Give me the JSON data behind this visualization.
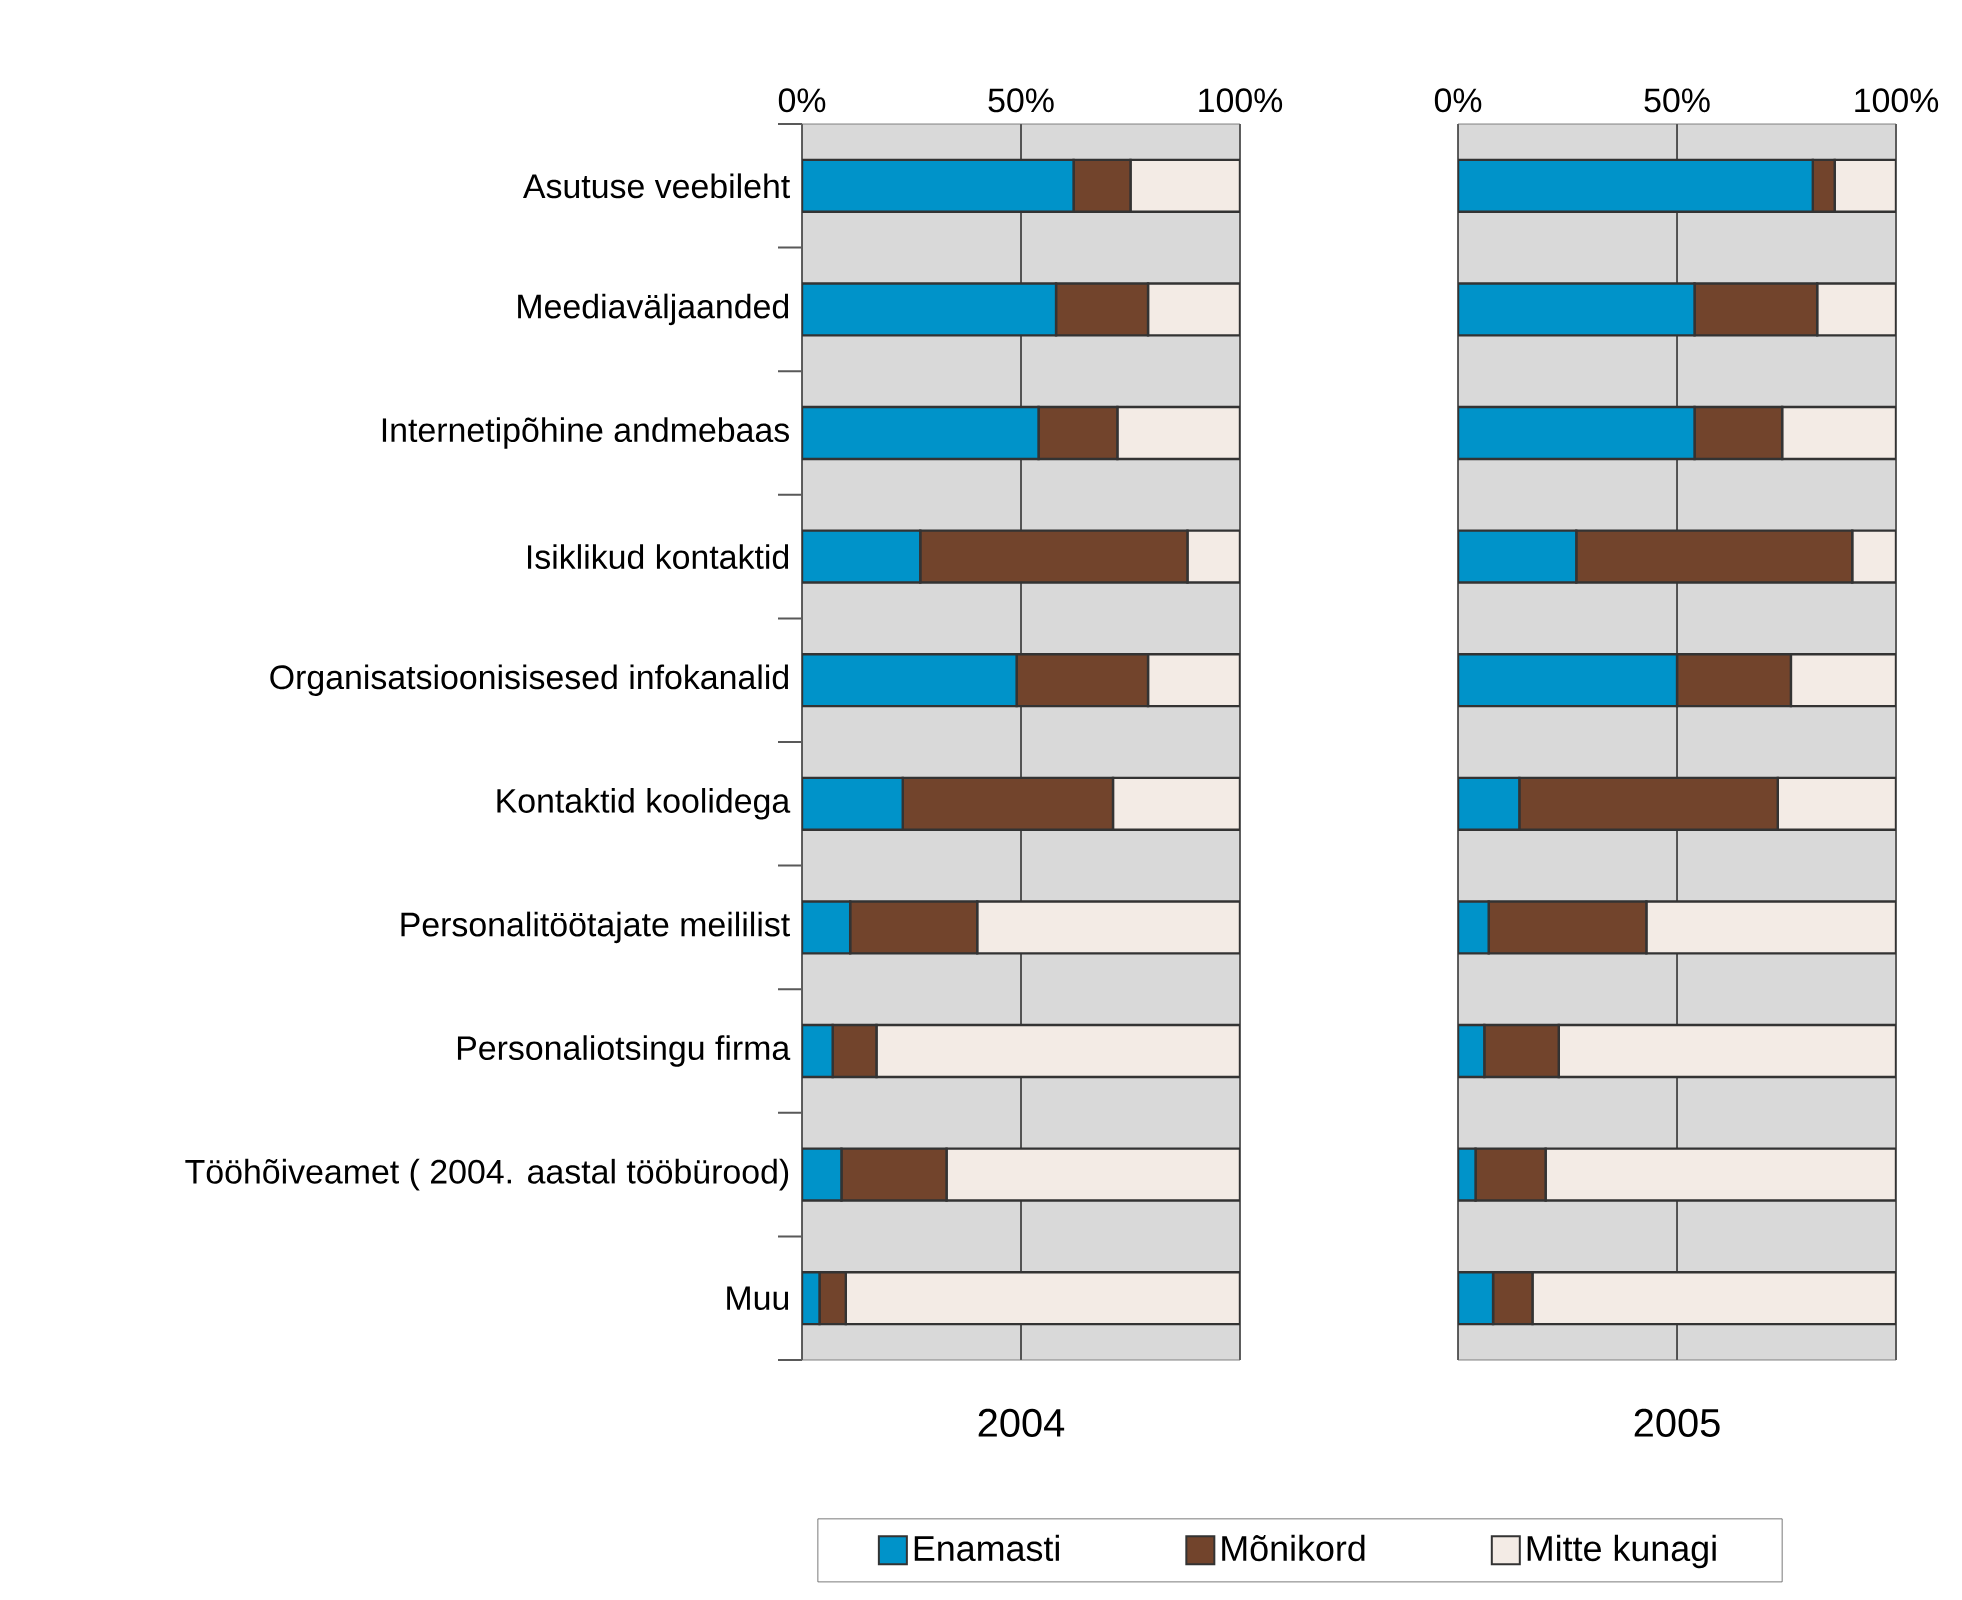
{
  "chart_data": [
    {
      "type": "bar",
      "orientation": "horizontal",
      "stacked": true,
      "xlabel": "2004",
      "categories": [
        "Asutuse veebileht",
        "Meediaväljaanded",
        "Internetipõhine andmebaas",
        "Isiklikud kontaktid",
        "Organisatsioonisisesed infokanalid",
        "Kontaktid koolidega",
        "Personalitöötajate meililist",
        "Personaliotsingu firma",
        "Tööhõiveamet ( 2004. aastal tööbürood)",
        "Muu"
      ],
      "xlim": [
        0,
        100
      ],
      "xticks": [
        {
          "value": 0,
          "label": "0%"
        },
        {
          "value": 50,
          "label": "50%"
        },
        {
          "value": 100,
          "label": "100%"
        }
      ],
      "grid": "x",
      "legend": "bottom",
      "series": [
        {
          "name": "Enamasti",
          "color": "#0093c9",
          "values": [
            62,
            58,
            54,
            27,
            49,
            23,
            11,
            7,
            9,
            4
          ]
        },
        {
          "name": "Mõnikord",
          "color": "#72442c",
          "values": [
            13,
            21,
            18,
            61,
            30,
            48,
            29,
            10,
            24,
            6
          ]
        },
        {
          "name": "Mitte kunagi",
          "color": "#f3ebe5",
          "values": [
            25,
            21,
            28,
            12,
            21,
            29,
            60,
            83,
            67,
            90
          ]
        }
      ]
    },
    {
      "type": "bar",
      "orientation": "horizontal",
      "stacked": true,
      "xlabel": "2005",
      "tick_labels": "x",
      "categories": [
        null,
        null,
        null,
        null,
        null,
        null,
        null,
        null,
        null,
        null
      ],
      "xlim": [
        0,
        100
      ],
      "xticks": [
        {
          "value": 0,
          "label": "0%"
        },
        {
          "value": 50,
          "label": "50%"
        },
        {
          "value": 100,
          "label": "100%"
        }
      ],
      "grid": "x",
      "series": [
        {
          "color": "#0093c9",
          "values": [
            81,
            54,
            54,
            27,
            50,
            14,
            7,
            6,
            4,
            8
          ]
        },
        {
          "color": "#72442c",
          "values": [
            5,
            28,
            20,
            63,
            26,
            59,
            36,
            17,
            16,
            9
          ]
        },
        {
          "color": "#f3ebe5",
          "values": [
            14,
            18,
            26,
            10,
            24,
            27,
            57,
            77,
            80,
            83
          ]
        }
      ]
    }
  ]
}
